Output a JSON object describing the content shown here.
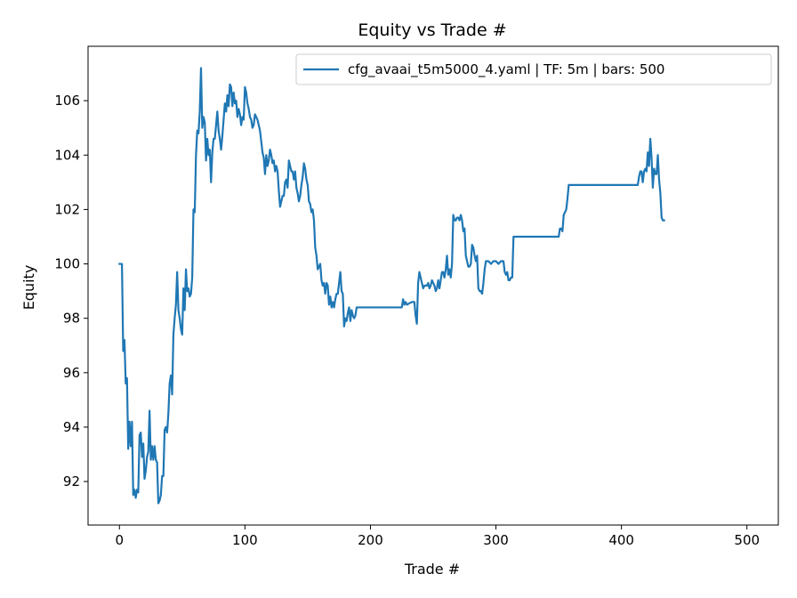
{
  "chart_data": {
    "type": "line",
    "title": "Equity vs Trade #",
    "xlabel": "Trade #",
    "ylabel": "Equity",
    "xlim": [
      -25,
      525
    ],
    "ylim": [
      90.4,
      108.0
    ],
    "xticks": [
      0,
      100,
      200,
      300,
      400,
      500
    ],
    "yticks": [
      92,
      94,
      96,
      98,
      100,
      102,
      104,
      106
    ],
    "grid": false,
    "legend": {
      "placement": "top-right"
    },
    "series": [
      {
        "name": "cfg_avaai_t5m5000_4.yaml | TF: 5m | bars: 500",
        "color": "#1f77b4",
        "points": [
          [
            0,
            100.0
          ],
          [
            2,
            100.0
          ],
          [
            3,
            96.8
          ],
          [
            4,
            97.2
          ],
          [
            5,
            95.6
          ],
          [
            6,
            95.8
          ],
          [
            7,
            93.2
          ],
          [
            8,
            94.2
          ],
          [
            9,
            93.3
          ],
          [
            10,
            94.2
          ],
          [
            11,
            91.5
          ],
          [
            12,
            91.7
          ],
          [
            13,
            91.4
          ],
          [
            14,
            91.7
          ],
          [
            15,
            91.6
          ],
          [
            16,
            93.7
          ],
          [
            17,
            93.8
          ],
          [
            18,
            92.9
          ],
          [
            19,
            93.4
          ],
          [
            20,
            92.1
          ],
          [
            21,
            92.4
          ],
          [
            22,
            92.9
          ],
          [
            23,
            93.1
          ],
          [
            24,
            94.6
          ],
          [
            25,
            92.8
          ],
          [
            26,
            93.3
          ],
          [
            27,
            92.8
          ],
          [
            28,
            93.3
          ],
          [
            29,
            92.8
          ],
          [
            30,
            92.7
          ],
          [
            31,
            91.2
          ],
          [
            32,
            91.3
          ],
          [
            33,
            91.5
          ],
          [
            34,
            92.2
          ],
          [
            35,
            92.2
          ],
          [
            36,
            93.9
          ],
          [
            37,
            94.0
          ],
          [
            38,
            93.8
          ],
          [
            39,
            94.5
          ],
          [
            40,
            95.6
          ],
          [
            41,
            95.9
          ],
          [
            42,
            95.2
          ],
          [
            43,
            97.4
          ],
          [
            44,
            98.0
          ],
          [
            45,
            98.5
          ],
          [
            46,
            99.7
          ],
          [
            47,
            98.3
          ],
          [
            48,
            98.0
          ],
          [
            49,
            97.6
          ],
          [
            50,
            97.4
          ],
          [
            51,
            99.1
          ],
          [
            52,
            98.3
          ],
          [
            53,
            99.8
          ],
          [
            54,
            99.0
          ],
          [
            55,
            99.1
          ],
          [
            56,
            98.8
          ],
          [
            57,
            98.9
          ],
          [
            58,
            99.5
          ],
          [
            59,
            102.0
          ],
          [
            60,
            101.9
          ],
          [
            61,
            104.0
          ],
          [
            62,
            104.9
          ],
          [
            63,
            104.8
          ],
          [
            64,
            105.6
          ],
          [
            65,
            107.2
          ],
          [
            66,
            105.0
          ],
          [
            67,
            105.4
          ],
          [
            68,
            105.2
          ],
          [
            69,
            103.8
          ],
          [
            70,
            104.6
          ],
          [
            71,
            104.0
          ],
          [
            72,
            104.2
          ],
          [
            73,
            103.0
          ],
          [
            74,
            104.1
          ],
          [
            75,
            104.6
          ],
          [
            76,
            104.6
          ],
          [
            77,
            105.1
          ],
          [
            78,
            105.6
          ],
          [
            79,
            104.9
          ],
          [
            80,
            104.6
          ],
          [
            81,
            104.2
          ],
          [
            82,
            104.7
          ],
          [
            83,
            105.3
          ],
          [
            84,
            105.9
          ],
          [
            85,
            105.6
          ],
          [
            86,
            106.2
          ],
          [
            87,
            105.8
          ],
          [
            88,
            106.6
          ],
          [
            89,
            106.5
          ],
          [
            90,
            105.8
          ],
          [
            91,
            106.3
          ],
          [
            92,
            105.9
          ],
          [
            93,
            106.0
          ],
          [
            94,
            105.4
          ],
          [
            95,
            105.7
          ],
          [
            96,
            105.5
          ],
          [
            97,
            105.1
          ],
          [
            98,
            105.4
          ],
          [
            99,
            105.3
          ],
          [
            100,
            106.5
          ],
          [
            101,
            106.3
          ],
          [
            102,
            105.9
          ],
          [
            103,
            105.7
          ],
          [
            104,
            105.4
          ],
          [
            105,
            105.3
          ],
          [
            106,
            105.0
          ],
          [
            107,
            105.1
          ],
          [
            108,
            105.5
          ],
          [
            109,
            105.4
          ],
          [
            110,
            105.3
          ],
          [
            111,
            105.1
          ],
          [
            112,
            104.9
          ],
          [
            113,
            104.5
          ],
          [
            114,
            104.1
          ],
          [
            115,
            103.9
          ],
          [
            116,
            103.3
          ],
          [
            117,
            104.0
          ],
          [
            118,
            103.6
          ],
          [
            119,
            103.8
          ],
          [
            120,
            104.2
          ],
          [
            121,
            104.0
          ],
          [
            122,
            103.7
          ],
          [
            123,
            103.8
          ],
          [
            124,
            103.4
          ],
          [
            125,
            103.6
          ],
          [
            126,
            103.4
          ],
          [
            127,
            102.7
          ],
          [
            128,
            102.1
          ],
          [
            129,
            102.3
          ],
          [
            130,
            102.5
          ],
          [
            131,
            102.5
          ],
          [
            132,
            103.0
          ],
          [
            133,
            103.1
          ],
          [
            134,
            102.8
          ],
          [
            135,
            103.8
          ],
          [
            136,
            103.6
          ],
          [
            137,
            103.4
          ],
          [
            138,
            103.4
          ],
          [
            139,
            103.1
          ],
          [
            140,
            103.4
          ],
          [
            141,
            102.8
          ],
          [
            142,
            102.6
          ],
          [
            143,
            102.3
          ],
          [
            144,
            102.5
          ],
          [
            145,
            102.9
          ],
          [
            146,
            103.2
          ],
          [
            147,
            103.7
          ],
          [
            148,
            103.5
          ],
          [
            149,
            103.1
          ],
          [
            150,
            102.9
          ],
          [
            151,
            102.3
          ],
          [
            152,
            102.2
          ],
          [
            153,
            101.9
          ],
          [
            154,
            102.0
          ],
          [
            155,
            101.6
          ],
          [
            156,
            100.6
          ],
          [
            157,
            100.3
          ],
          [
            158,
            99.8
          ],
          [
            159,
            99.9
          ],
          [
            160,
            100.0
          ],
          [
            161,
            99.4
          ],
          [
            162,
            99.2
          ],
          [
            163,
            99.3
          ],
          [
            164,
            98.9
          ],
          [
            165,
            99.3
          ],
          [
            166,
            99.2
          ],
          [
            167,
            98.5
          ],
          [
            168,
            98.8
          ],
          [
            169,
            98.4
          ],
          [
            170,
            98.6
          ],
          [
            171,
            98.4
          ],
          [
            172,
            98.7
          ],
          [
            173,
            98.9
          ],
          [
            174,
            98.9
          ],
          [
            175,
            99.3
          ],
          [
            176,
            99.7
          ],
          [
            177,
            99.0
          ],
          [
            178,
            98.9
          ],
          [
            179,
            97.7
          ],
          [
            180,
            98.0
          ],
          [
            181,
            97.9
          ],
          [
            182,
            98.2
          ],
          [
            183,
            98.4
          ],
          [
            184,
            97.9
          ],
          [
            185,
            98.3
          ],
          [
            186,
            98.1
          ],
          [
            187,
            98.0
          ],
          [
            188,
            98.1
          ],
          [
            189,
            98.4
          ],
          [
            190,
            98.4
          ],
          [
            200,
            98.4
          ],
          [
            210,
            98.4
          ],
          [
            220,
            98.4
          ],
          [
            225,
            98.4
          ],
          [
            226,
            98.7
          ],
          [
            227,
            98.5
          ],
          [
            228,
            98.6
          ],
          [
            229,
            98.5
          ],
          [
            233,
            98.6
          ],
          [
            235,
            98.6
          ],
          [
            236,
            98.1
          ],
          [
            237,
            97.8
          ],
          [
            238,
            99.3
          ],
          [
            239,
            99.7
          ],
          [
            240,
            99.5
          ],
          [
            241,
            99.3
          ],
          [
            242,
            99.1
          ],
          [
            243,
            99.2
          ],
          [
            245,
            99.2
          ],
          [
            246,
            99.3
          ],
          [
            247,
            99.1
          ],
          [
            248,
            99.2
          ],
          [
            249,
            99.4
          ],
          [
            250,
            99.3
          ],
          [
            251,
            99.2
          ],
          [
            252,
            99.0
          ],
          [
            253,
            99.1
          ],
          [
            254,
            99.4
          ],
          [
            255,
            99.1
          ],
          [
            256,
            99.4
          ],
          [
            257,
            99.7
          ],
          [
            258,
            99.7
          ],
          [
            259,
            99.5
          ],
          [
            260,
            99.8
          ],
          [
            261,
            100.3
          ],
          [
            262,
            99.6
          ],
          [
            263,
            99.8
          ],
          [
            264,
            99.5
          ],
          [
            265,
            100.0
          ],
          [
            266,
            101.8
          ],
          [
            267,
            101.6
          ],
          [
            268,
            101.6
          ],
          [
            269,
            101.7
          ],
          [
            270,
            101.7
          ],
          [
            271,
            101.6
          ],
          [
            272,
            101.8
          ],
          [
            273,
            101.6
          ],
          [
            274,
            101.2
          ],
          [
            275,
            101.3
          ],
          [
            276,
            100.3
          ],
          [
            277,
            100.1
          ],
          [
            278,
            99.9
          ],
          [
            279,
            99.9
          ],
          [
            280,
            100.0
          ],
          [
            281,
            100.7
          ],
          [
            282,
            100.6
          ],
          [
            283,
            100.3
          ],
          [
            284,
            100.1
          ],
          [
            285,
            100.3
          ],
          [
            286,
            99.1
          ],
          [
            287,
            99.0
          ],
          [
            288,
            99.0
          ],
          [
            289,
            98.9
          ],
          [
            290,
            99.3
          ],
          [
            291,
            99.8
          ],
          [
            292,
            100.1
          ],
          [
            294,
            100.1
          ],
          [
            296,
            100.0
          ],
          [
            298,
            100.1
          ],
          [
            300,
            100.1
          ],
          [
            302,
            100.0
          ],
          [
            304,
            100.1
          ],
          [
            306,
            100.1
          ],
          [
            307,
            99.7
          ],
          [
            308,
            99.6
          ],
          [
            309,
            99.7
          ],
          [
            310,
            99.4
          ],
          [
            311,
            99.4
          ],
          [
            312,
            99.5
          ],
          [
            313,
            99.5
          ],
          [
            314,
            101.0
          ],
          [
            320,
            101.0
          ],
          [
            330,
            101.0
          ],
          [
            340,
            101.0
          ],
          [
            350,
            101.0
          ],
          [
            351,
            101.3
          ],
          [
            352,
            101.3
          ],
          [
            353,
            101.2
          ],
          [
            354,
            101.8
          ],
          [
            355,
            101.9
          ],
          [
            356,
            102.0
          ],
          [
            357,
            102.4
          ],
          [
            358,
            102.9
          ],
          [
            359,
            102.9
          ],
          [
            360,
            102.9
          ],
          [
            370,
            102.9
          ],
          [
            380,
            102.9
          ],
          [
            390,
            102.9
          ],
          [
            400,
            102.9
          ],
          [
            410,
            102.9
          ],
          [
            412,
            102.9
          ],
          [
            413,
            102.9
          ],
          [
            414,
            103.2
          ],
          [
            415,
            103.4
          ],
          [
            416,
            103.4
          ],
          [
            417,
            103.0
          ],
          [
            418,
            103.4
          ],
          [
            419,
            103.5
          ],
          [
            420,
            103.4
          ],
          [
            421,
            104.1
          ],
          [
            422,
            103.6
          ],
          [
            423,
            104.6
          ],
          [
            424,
            103.9
          ],
          [
            425,
            102.8
          ],
          [
            426,
            103.5
          ],
          [
            427,
            103.3
          ],
          [
            428,
            103.3
          ],
          [
            429,
            104.0
          ],
          [
            430,
            103.1
          ],
          [
            431,
            102.6
          ],
          [
            432,
            101.7
          ],
          [
            433,
            101.6
          ],
          [
            434,
            101.6
          ]
        ]
      }
    ]
  }
}
